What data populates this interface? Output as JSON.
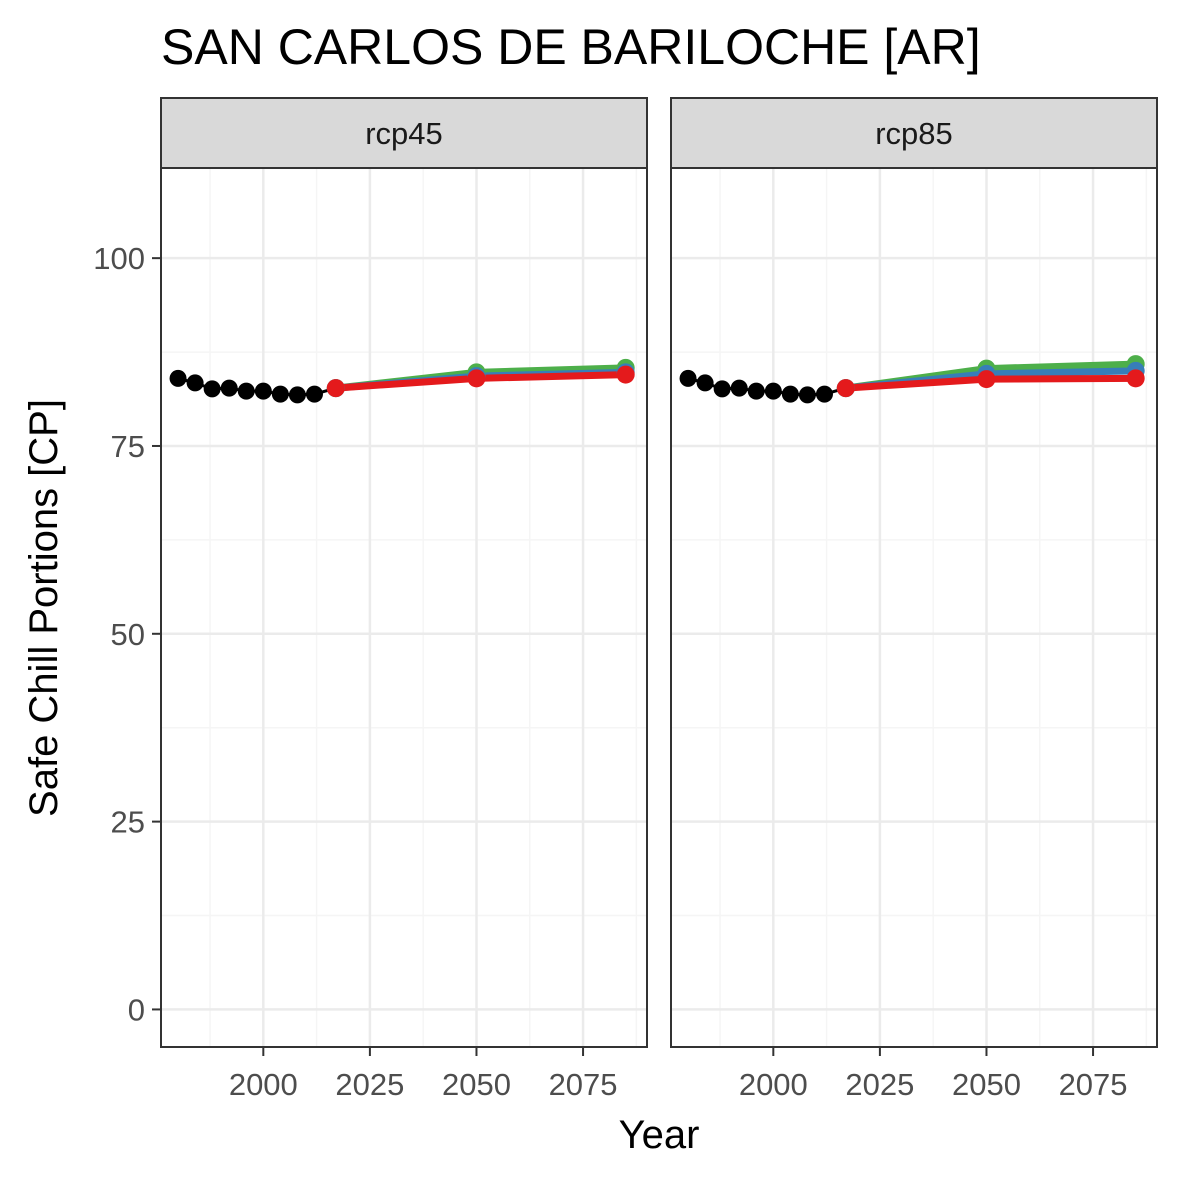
{
  "chart_data": {
    "type": "line",
    "title": "SAN CARLOS DE BARILOCHE [AR]",
    "xlabel": "Year",
    "ylabel": "Safe Chill Portions [CP]",
    "xlim": [
      1976,
      2090
    ],
    "ylim": [
      -5,
      112
    ],
    "x_ticks": [
      2000,
      2025,
      2050,
      2075
    ],
    "y_ticks": [
      0,
      25,
      50,
      75,
      100
    ],
    "grid": true,
    "colors": {
      "historic": "#000000",
      "green": "#4DAF4A",
      "blue": "#377EB8",
      "red": "#E41A1C",
      "panel_border": "#333333",
      "strip_fill": "#D9D9D9",
      "grid_major": "#EBEBEB",
      "grid_minor": "#F5F5F5"
    },
    "panels": [
      {
        "label": "rcp45",
        "historic": {
          "x": [
            1980,
            1984,
            1988,
            1992,
            1996,
            2000,
            2004,
            2008,
            2012
          ],
          "y": [
            84.0,
            83.4,
            82.6,
            82.7,
            82.3,
            82.3,
            81.9,
            81.8,
            81.9
          ]
        },
        "series": [
          {
            "color": "green",
            "x": [
              2017,
              2050,
              2085
            ],
            "y": [
              82.7,
              84.8,
              85.4
            ]
          },
          {
            "color": "blue",
            "x": [
              2017,
              2050,
              2085
            ],
            "y": [
              82.7,
              84.3,
              84.8
            ]
          },
          {
            "color": "red",
            "x": [
              2017,
              2050,
              2085
            ],
            "y": [
              82.7,
              84.0,
              84.5
            ]
          }
        ]
      },
      {
        "label": "rcp85",
        "historic": {
          "x": [
            1980,
            1984,
            1988,
            1992,
            1996,
            2000,
            2004,
            2008,
            2012
          ],
          "y": [
            84.0,
            83.4,
            82.6,
            82.7,
            82.3,
            82.3,
            81.9,
            81.8,
            81.9
          ]
        },
        "series": [
          {
            "color": "green",
            "x": [
              2017,
              2050,
              2085
            ],
            "y": [
              82.7,
              85.3,
              85.9
            ]
          },
          {
            "color": "blue",
            "x": [
              2017,
              2050,
              2085
            ],
            "y": [
              82.7,
              84.6,
              85.0
            ]
          },
          {
            "color": "red",
            "x": [
              2017,
              2050,
              2085
            ],
            "y": [
              82.7,
              83.9,
              84.0
            ]
          }
        ]
      }
    ]
  }
}
